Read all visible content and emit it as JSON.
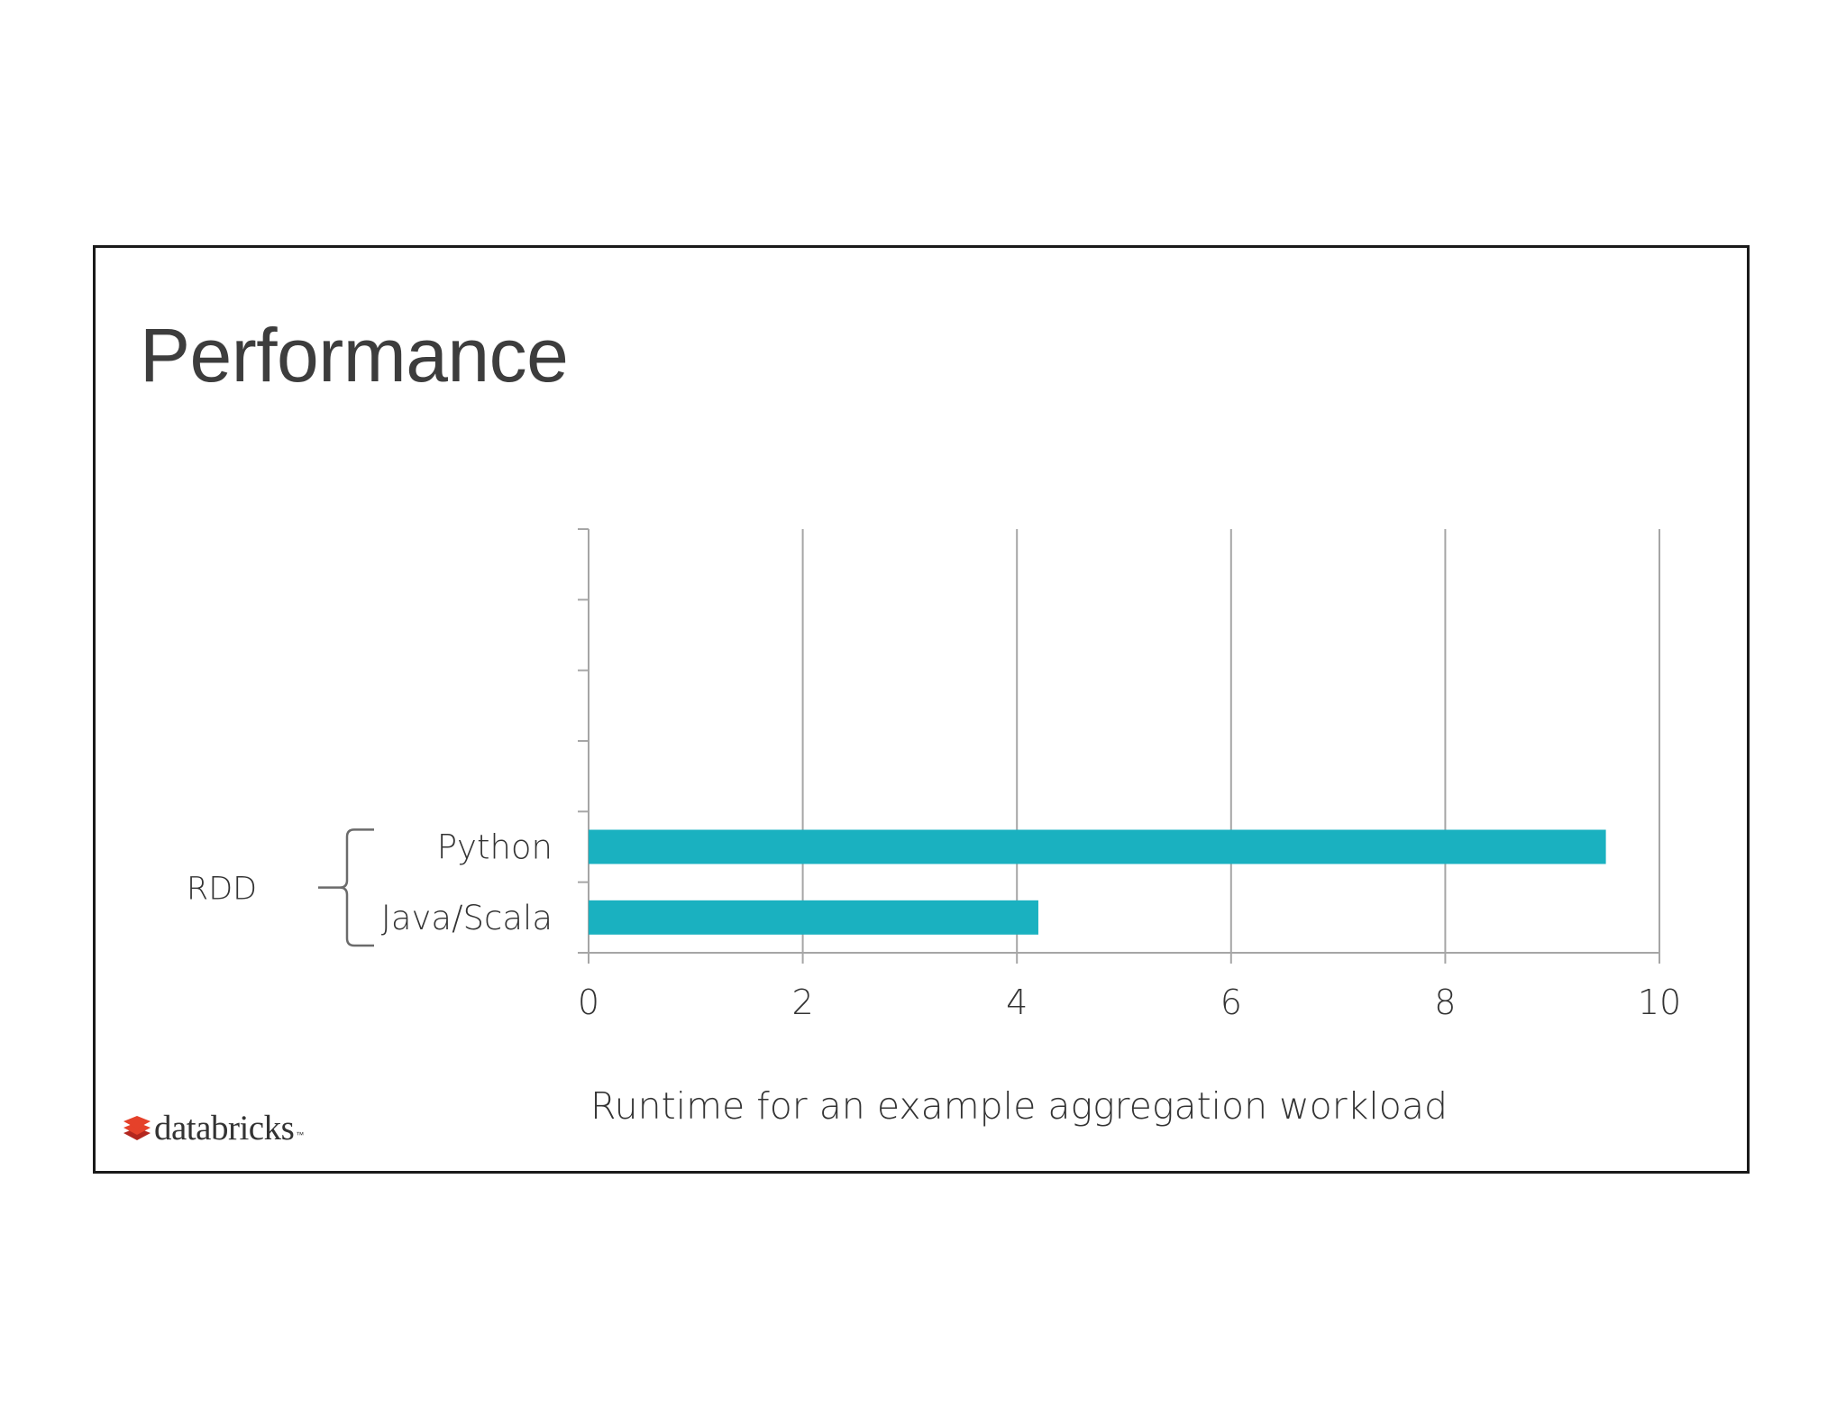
{
  "slide": {
    "title": "Performance",
    "brand": "databricks",
    "brand_mark": "™"
  },
  "colors": {
    "bar": "#1ab1c0",
    "grid": "#a6a6a6",
    "text": "#333333",
    "title": "#3d3d3d",
    "logo_red": "#e5412a"
  },
  "chart_data": {
    "type": "bar",
    "orientation": "horizontal",
    "categories": [
      "Python",
      "Java/Scala"
    ],
    "values": [
      9.5,
      4.2
    ],
    "group_label": "RDD",
    "xlabel": "Runtime for an example aggregation workload",
    "xlim": [
      0,
      10
    ],
    "xticks": [
      "0",
      "2",
      "4",
      "6",
      "8",
      "10"
    ],
    "grid": "vertical",
    "legend": "none"
  }
}
